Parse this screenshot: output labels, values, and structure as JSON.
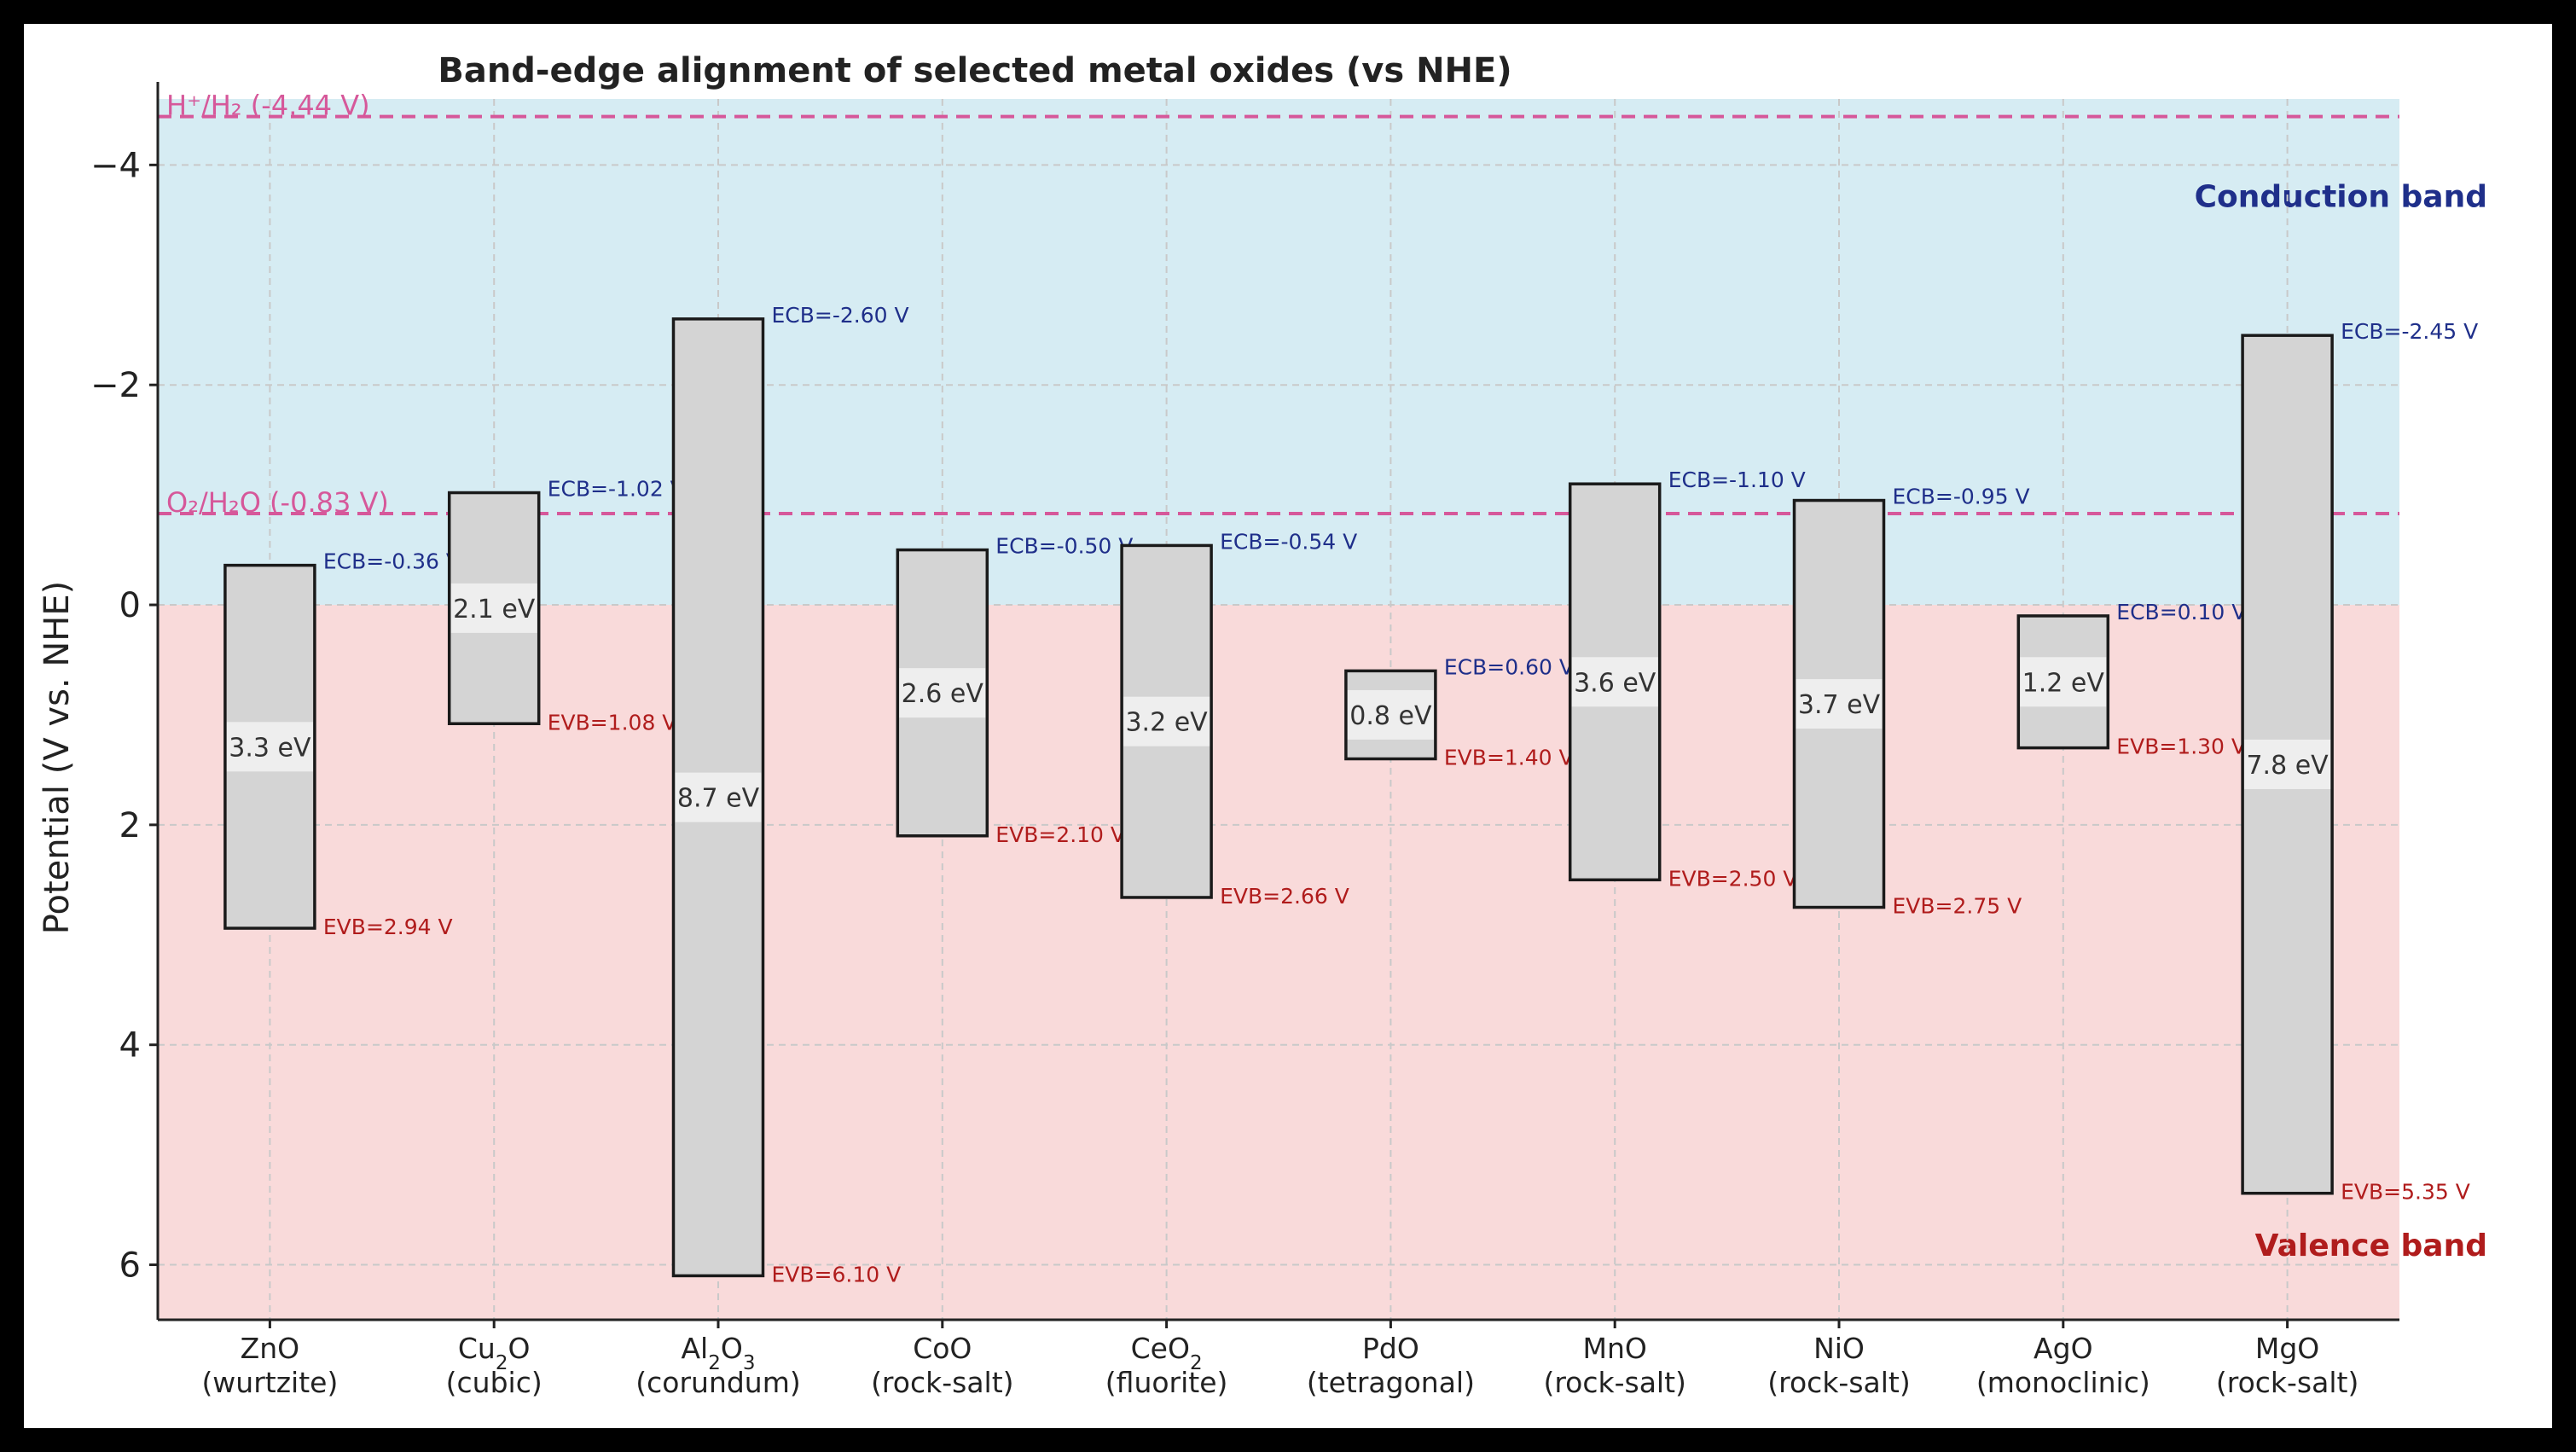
{
  "chart_data": {
    "type": "band-edge",
    "title": "Band-edge alignment of selected metal oxides (vs NHE)",
    "xlabel": "",
    "ylabel": "Potential (V vs. NHE)",
    "ylim": [
      6.5,
      -4.6
    ],
    "yticks": [
      -4,
      -2,
      0,
      2,
      4,
      6
    ],
    "ytick_labels": [
      "−4",
      "−2",
      "0",
      "2",
      "4",
      "6"
    ],
    "grid": true,
    "regions": {
      "conduction": {
        "label": "Conduction band",
        "color": "#d6ecf3",
        "from": -4.6,
        "to": 0,
        "label_color": "#1f2f8a"
      },
      "valence": {
        "label": "Valence band",
        "color": "#f9dada",
        "from": 0,
        "to": 6.5,
        "label_color": "#b01c1c"
      }
    },
    "reference_lines": [
      {
        "label": "H⁺/H₂ (-4.44 V)",
        "value": -4.44,
        "color": "#d6589a"
      },
      {
        "label": "O₂/H₂O (-0.83 V)",
        "value": -0.83,
        "color": "#d6589a"
      }
    ],
    "materials": [
      {
        "name": "ZnO",
        "sub": "",
        "structure": "(wurtzite)",
        "ecb": -0.36,
        "evb": 2.94,
        "gap_label": "3.3 eV",
        "ecb_label": "ECB=-0.36 V",
        "evb_label": "EVB=2.94 V"
      },
      {
        "name": "Cu",
        "sub": "2",
        "name_after": "O",
        "structure": "(cubic)",
        "ecb": -1.02,
        "evb": 1.08,
        "gap_label": "2.1 eV",
        "ecb_label": "ECB=-1.02 V",
        "evb_label": "EVB=1.08 V"
      },
      {
        "name": "Al",
        "sub": "2",
        "name_after": "O",
        "sub2": "3",
        "structure": "(corundum)",
        "ecb": -2.6,
        "evb": 6.1,
        "gap_label": "8.7 eV",
        "ecb_label": "ECB=-2.60 V",
        "evb_label": "EVB=6.10 V"
      },
      {
        "name": "CoO",
        "sub": "",
        "structure": "(rock-salt)",
        "ecb": -0.5,
        "evb": 2.1,
        "gap_label": "2.6 eV",
        "ecb_label": "ECB=-0.50 V",
        "evb_label": "EVB=2.10 V"
      },
      {
        "name": "CeO",
        "sub": "2",
        "structure": "(fluorite)",
        "ecb": -0.54,
        "evb": 2.66,
        "gap_label": "3.2 eV",
        "ecb_label": "ECB=-0.54 V",
        "evb_label": "EVB=2.66 V"
      },
      {
        "name": "PdO",
        "sub": "",
        "structure": "(tetragonal)",
        "ecb": 0.6,
        "evb": 1.4,
        "gap_label": "0.8 eV",
        "ecb_label": "ECB=0.60 V",
        "evb_label": "EVB=1.40 V"
      },
      {
        "name": "MnO",
        "sub": "",
        "structure": "(rock-salt)",
        "ecb": -1.1,
        "evb": 2.5,
        "gap_label": "3.6 eV",
        "ecb_label": "ECB=-1.10 V",
        "evb_label": "EVB=2.50 V"
      },
      {
        "name": "NiO",
        "sub": "",
        "structure": "(rock-salt)",
        "ecb": -0.95,
        "evb": 2.75,
        "gap_label": "3.7 eV",
        "ecb_label": "ECB=-0.95 V",
        "evb_label": "EVB=2.75 V"
      },
      {
        "name": "AgO",
        "sub": "",
        "structure": "(monoclinic)",
        "ecb": 0.1,
        "evb": 1.3,
        "gap_label": "1.2 eV",
        "ecb_label": "ECB=0.10 V",
        "evb_label": "EVB=1.30 V"
      },
      {
        "name": "MgO",
        "sub": "",
        "structure": "(rock-salt)",
        "ecb": -2.45,
        "evb": 5.35,
        "gap_label": "7.8 eV",
        "ecb_label": "ECB=-2.45 V",
        "evb_label": "EVB=5.35 V"
      }
    ]
  }
}
